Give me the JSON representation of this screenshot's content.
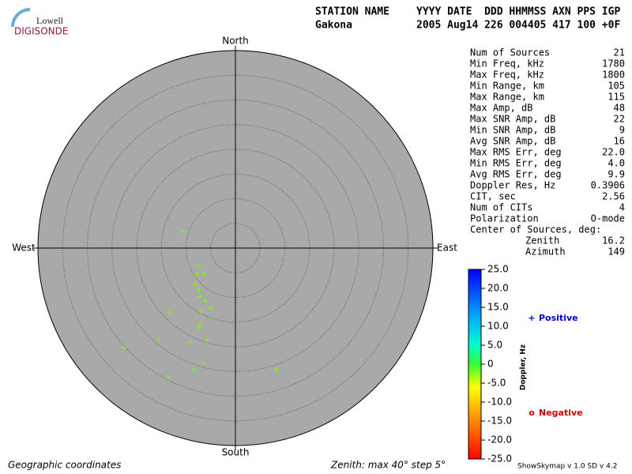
{
  "logo": {
    "top": "Lowell",
    "bottom": "DIGISONDE"
  },
  "header": {
    "labels": "STATION NAME",
    "fields": "YYYY DATE  DDD HHMMSS AXN PPS IGP",
    "station": "Gakona",
    "values": "2005 Aug14 226 004405 417 100 +0F"
  },
  "stats": {
    "rows": [
      [
        "Num of Sources",
        "21"
      ],
      [
        "Min Freq, kHz",
        "1780"
      ],
      [
        "Max Freq, kHz",
        "1800"
      ],
      [
        "Min Range, km",
        "105"
      ],
      [
        "Max Range, km",
        "115"
      ],
      [
        "Max Amp, dB",
        "48"
      ],
      [
        "Max SNR Amp, dB",
        "22"
      ],
      [
        "Min SNR Amp, dB",
        "9"
      ],
      [
        "Avg SNR Amp, dB",
        "16"
      ],
      [
        "Max RMS Err, deg",
        "22.0"
      ],
      [
        "Min RMS Err, deg",
        "4.0"
      ],
      [
        "Avg RMS Err, deg",
        "9.9"
      ],
      [
        "Doppler Res, Hz",
        "0.3906"
      ],
      [
        "CIT, sec",
        "2.56"
      ],
      [
        "Num of CITs",
        "4"
      ],
      [
        "Polarization",
        "O-mode"
      ]
    ],
    "center_title": "Center of Sources, deg:",
    "center_rows": [
      [
        "Zenith",
        "16.2"
      ],
      [
        "Azimuth",
        "149"
      ]
    ]
  },
  "footer": {
    "left": "Geographic coordinates",
    "middle": "Zenith: max 40°  step 5°",
    "right": "ShowSkymap v 1.0  SD v 4.2"
  },
  "chart_data": {
    "type": "polar-scatter",
    "directions": {
      "north": "North",
      "south": "South",
      "east": "East",
      "west": "West"
    },
    "rlim": [
      0,
      40
    ],
    "rticks": [
      5,
      10,
      15,
      20,
      25,
      30,
      35
    ],
    "series": [
      {
        "name": "Positive",
        "color": "#7cfc00",
        "x": [
          -10.6,
          -7.4,
          -7.8,
          -6.4,
          -8.2,
          -7.4,
          -7.2,
          -6.1,
          -5.0,
          -7.0,
          -13.3,
          -7.2,
          -7.4,
          -15.5,
          -5.8,
          -9.0,
          -22.6,
          -6.7,
          -8.5,
          8.3,
          -13.6
        ],
        "values": [
          3.4,
          -3.7,
          -5.3,
          -5.3,
          -7.4,
          -8.5,
          -9.8,
          -10.6,
          -12.2,
          -12.8,
          -13.0,
          -15.4,
          -16.3,
          -18.6,
          -18.6,
          -19.0,
          -20.2,
          -23.2,
          -24.6,
          -24.5,
          -26.2
        ],
        "symbols": [
          "+",
          "o",
          "+",
          "+",
          "+",
          "+",
          "+",
          "+",
          "+",
          "+",
          "+",
          "+",
          "o",
          "+",
          "+",
          "+",
          "+",
          "o",
          "+",
          "+",
          "+"
        ]
      }
    ],
    "legend": [
      {
        "symbol": "+",
        "label": "Positive",
        "color": "#0000cc"
      },
      {
        "symbol": "o",
        "label": "Negative",
        "color": "#cc0000"
      }
    ],
    "colorbar": {
      "label": "Doppler, Hz",
      "lim": [
        -25,
        25
      ],
      "ticks": [
        {
          "value": 25,
          "label": "25.0"
        },
        {
          "value": 20,
          "label": "20.0"
        },
        {
          "value": 15,
          "label": "15.0"
        },
        {
          "value": 10,
          "label": "10.0"
        },
        {
          "value": 5,
          "label": "5.0"
        },
        0,
        {
          "value": -5,
          "label": "-5.0"
        },
        {
          "value": -10,
          "label": "-10.0"
        },
        {
          "value": -15,
          "label": "-15.0"
        },
        {
          "value": -20,
          "label": "-20.0"
        },
        {
          "value": -25,
          "label": "-25.0"
        }
      ]
    }
  }
}
